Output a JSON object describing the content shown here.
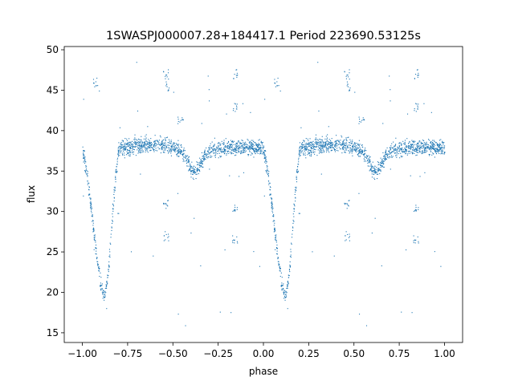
{
  "chart_data": {
    "type": "scatter",
    "title": "1SWASPJ000007.28+184417.1 Period 223690.53125s",
    "xlabel": "phase",
    "ylabel": "flux",
    "xlim": [
      -1.1,
      1.1
    ],
    "ylim": [
      13.8,
      50.4
    ],
    "xticks": [
      -1.0,
      -0.75,
      -0.5,
      -0.25,
      0.0,
      0.25,
      0.5,
      0.75,
      1.0
    ],
    "xtick_labels": [
      "−1.00",
      "−0.75",
      "−0.50",
      "−0.25",
      "0.00",
      "0.25",
      "0.50",
      "0.75",
      "1.00"
    ],
    "yticks": [
      15,
      20,
      25,
      30,
      35,
      40,
      45,
      50
    ],
    "ytick_labels": [
      "15",
      "20",
      "25",
      "30",
      "35",
      "40",
      "45",
      "50"
    ],
    "grid": false,
    "color": "#1f77b4",
    "period_repeat": 1.0,
    "folded_curve": {
      "phase": [
        0.0,
        0.03,
        0.06,
        0.08,
        0.1,
        0.12,
        0.14,
        0.16,
        0.18,
        0.2,
        0.25,
        0.3,
        0.35,
        0.4,
        0.45,
        0.5,
        0.55,
        0.58,
        0.6,
        0.62,
        0.65,
        0.68,
        0.72,
        0.8,
        0.9,
        1.0
      ],
      "flux": [
        37.8,
        33.5,
        28.0,
        24.0,
        21.0,
        19.6,
        22.0,
        28.0,
        34.0,
        37.8,
        38.0,
        38.2,
        38.3,
        38.3,
        38.2,
        38.0,
        37.4,
        36.2,
        35.2,
        35.0,
        35.8,
        37.2,
        37.8,
        38.0,
        38.1,
        37.8
      ]
    },
    "outlier_bands": [
      {
        "phase": 0.46,
        "flux": 47.0
      },
      {
        "phase": 0.46,
        "flux": 31.0
      },
      {
        "phase": 0.46,
        "flux": 27.0
      },
      {
        "phase": 0.84,
        "flux": 47.0
      },
      {
        "phase": 0.84,
        "flux": 43.0
      },
      {
        "phase": 0.84,
        "flux": 26.5
      },
      {
        "phase": 0.84,
        "flux": 30.5
      },
      {
        "phase": 0.54,
        "flux": 41.5
      },
      {
        "phase": 0.47,
        "flux": 45.5
      },
      {
        "phase": 0.07,
        "flux": 46.0
      }
    ]
  }
}
